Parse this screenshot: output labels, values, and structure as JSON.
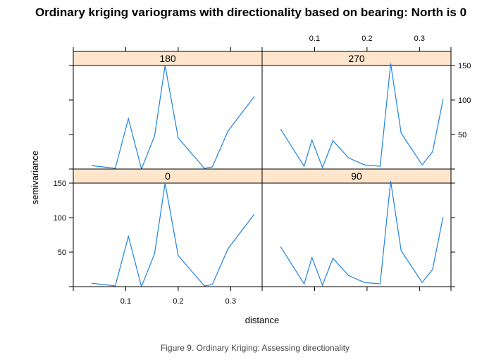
{
  "chart_data": {
    "type": "line",
    "title": "Ordinary kriging variograms with directionality based on bearing: North is 0",
    "xlabel": "distance",
    "ylabel": "semivariance",
    "xlim": [
      0.0,
      0.36
    ],
    "ylim": [
      0,
      150
    ],
    "x_ticks": [
      0.1,
      0.2,
      0.3
    ],
    "y_ticks": [
      50,
      100,
      150
    ],
    "layout": "2x2 lattice (panels 0 and 90 bottom, 180 and 270 top)",
    "line_color": "#1f82e0",
    "strip_color": "#ffe5cc",
    "panels": [
      {
        "direction": "180",
        "x": [
          0.035,
          0.08,
          0.105,
          0.13,
          0.155,
          0.175,
          0.2,
          0.25,
          0.265,
          0.295,
          0.345
        ],
        "y": [
          5,
          1,
          73,
          0,
          48,
          150,
          45,
          1,
          3,
          55,
          105
        ]
      },
      {
        "direction": "270",
        "x": [
          0.035,
          0.08,
          0.095,
          0.115,
          0.135,
          0.165,
          0.195,
          0.225,
          0.245,
          0.265,
          0.305,
          0.325,
          0.345
        ],
        "y": [
          58,
          4,
          42,
          2,
          41,
          16,
          6,
          4,
          153,
          52,
          6,
          25,
          101
        ]
      },
      {
        "direction": "0",
        "x": [
          0.035,
          0.08,
          0.105,
          0.13,
          0.155,
          0.175,
          0.2,
          0.25,
          0.265,
          0.295,
          0.345
        ],
        "y": [
          5,
          1,
          73,
          0,
          48,
          150,
          45,
          1,
          3,
          55,
          105
        ]
      },
      {
        "direction": "90",
        "x": [
          0.035,
          0.08,
          0.095,
          0.115,
          0.135,
          0.165,
          0.195,
          0.225,
          0.245,
          0.265,
          0.305,
          0.325,
          0.345
        ],
        "y": [
          58,
          4,
          42,
          2,
          41,
          16,
          6,
          4,
          153,
          52,
          6,
          25,
          101
        ]
      }
    ]
  },
  "caption": "Figure 9. Ordinary Kriging: Assessing directionality"
}
